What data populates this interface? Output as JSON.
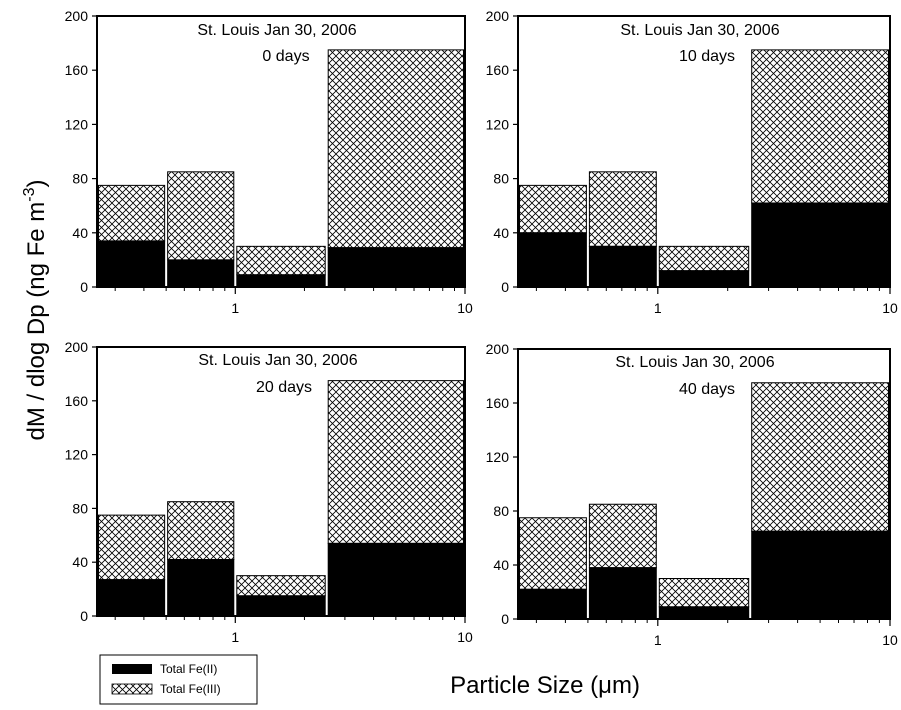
{
  "figure": {
    "ylabel_main": "dM / dlog Dp (ng Fe m",
    "ylabel_sup": "-3",
    "ylabel_close": ")",
    "xlabel_main": "Particle Size (",
    "xlabel_unit": "μm",
    "xlabel_close": ")"
  },
  "legend": {
    "items": [
      {
        "label": "Total Fe(II)",
        "fill": "solid"
      },
      {
        "label": "Total Fe(III)",
        "fill": "crosshatch"
      }
    ]
  },
  "colors": {
    "fe2": "#000000",
    "frame": "#000000",
    "background": "#ffffff"
  },
  "chart_data": [
    {
      "type": "bar",
      "stacked": true,
      "x_scale": "log",
      "xlim": [
        0.25,
        10
      ],
      "ylim": [
        0,
        200
      ],
      "yticks": [
        0,
        40,
        80,
        120,
        160,
        200
      ],
      "xticks": [
        1,
        10
      ],
      "bins": [
        [
          0.25,
          0.5
        ],
        [
          0.5,
          1.0
        ],
        [
          1.0,
          2.5
        ],
        [
          2.5,
          10
        ]
      ],
      "annotation": [
        "St. Louis Jan 30, 2006",
        "0 days"
      ],
      "series": [
        {
          "name": "Total Fe(II)",
          "values": [
            34,
            20,
            9,
            29
          ]
        },
        {
          "name": "Total Fe(III)",
          "values": [
            41,
            65,
            21,
            146
          ]
        }
      ]
    },
    {
      "type": "bar",
      "stacked": true,
      "x_scale": "log",
      "xlim": [
        0.25,
        10
      ],
      "ylim": [
        0,
        200
      ],
      "yticks": [
        0,
        40,
        80,
        120,
        160,
        200
      ],
      "xticks": [
        1,
        10
      ],
      "bins": [
        [
          0.25,
          0.5
        ],
        [
          0.5,
          1.0
        ],
        [
          1.0,
          2.5
        ],
        [
          2.5,
          10
        ]
      ],
      "annotation": [
        "St. Louis Jan 30, 2006",
        "10 days"
      ],
      "series": [
        {
          "name": "Total Fe(II)",
          "values": [
            40,
            30,
            12,
            62
          ]
        },
        {
          "name": "Total Fe(III)",
          "values": [
            35,
            55,
            18,
            113
          ]
        }
      ]
    },
    {
      "type": "bar",
      "stacked": true,
      "x_scale": "log",
      "xlim": [
        0.25,
        10
      ],
      "ylim": [
        0,
        200
      ],
      "yticks": [
        0,
        40,
        80,
        120,
        160,
        200
      ],
      "xticks": [
        1,
        10
      ],
      "bins": [
        [
          0.25,
          0.5
        ],
        [
          0.5,
          1.0
        ],
        [
          1.0,
          2.5
        ],
        [
          2.5,
          10
        ]
      ],
      "annotation": [
        "St. Louis Jan 30, 2006",
        "20 days"
      ],
      "series": [
        {
          "name": "Total Fe(II)",
          "values": [
            27,
            42,
            15,
            54
          ]
        },
        {
          "name": "Total Fe(III)",
          "values": [
            48,
            43,
            15,
            121
          ]
        }
      ]
    },
    {
      "type": "bar",
      "stacked": true,
      "x_scale": "log",
      "xlim": [
        0.25,
        10
      ],
      "ylim": [
        0,
        200
      ],
      "yticks": [
        0,
        40,
        80,
        120,
        160,
        200
      ],
      "xticks": [
        1,
        10
      ],
      "bins": [
        [
          0.25,
          0.5
        ],
        [
          0.5,
          1.0
        ],
        [
          1.0,
          2.5
        ],
        [
          2.5,
          10
        ]
      ],
      "annotation": [
        "St. Louis Jan 30, 2006",
        "40 days"
      ],
      "series": [
        {
          "name": "Total Fe(II)",
          "values": [
            22,
            38,
            9,
            65
          ]
        },
        {
          "name": "Total Fe(III)",
          "values": [
            53,
            47,
            21,
            110
          ]
        }
      ]
    }
  ]
}
